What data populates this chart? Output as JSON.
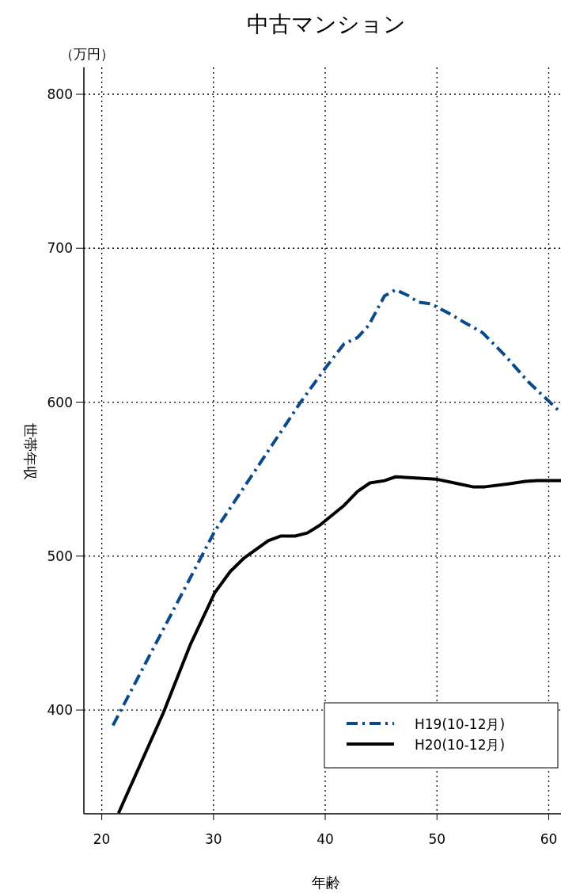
{
  "chart_data": {
    "type": "line",
    "title": "中古マンション",
    "xlabel": "年齢",
    "ylabel": "世帯年収",
    "annotations": [
      "（万円）"
    ],
    "xlim": [
      18.4,
      61.1
    ],
    "ylim": [
      332.6,
      817.5
    ],
    "xticks": [
      20,
      30,
      40,
      50,
      60
    ],
    "yticks": [
      400,
      500,
      600,
      700,
      800
    ],
    "grid": true,
    "legend": "bottom right",
    "marker": "none",
    "series": [
      {
        "name": "H19(10-12月)",
        "color": "#0a4a8c",
        "line_style": "dashdot",
        "x": [
          21.0,
          30.1,
          37.8,
          40.0,
          41.7,
          42.9,
          43.9,
          45.3,
          46.3,
          47.5,
          48.3,
          49.4,
          51.0,
          52.4,
          54.1,
          56.0,
          58.2,
          60.1,
          61.1
        ],
        "values": [
          390,
          516,
          600,
          622,
          638,
          642,
          650,
          669,
          673,
          669,
          665,
          664,
          658,
          652,
          645,
          631,
          613,
          600,
          593
        ]
      },
      {
        "name": "H20(10-12月)",
        "color": "#000000",
        "line_style": "solid",
        "x": [
          21.5,
          25.5,
          27.9,
          30.1,
          31.5,
          32.7,
          34.9,
          36.0,
          37.3,
          38.4,
          39.5,
          41.7,
          42.9,
          44.0,
          45.3,
          46.3,
          47.5,
          49.9,
          51.9,
          53.2,
          54.3,
          56.5,
          57.9,
          59.0,
          61.1
        ],
        "values": [
          333,
          398,
          442,
          476,
          490,
          498.5,
          510,
          513,
          513,
          515,
          520,
          533,
          542,
          547.5,
          549,
          551.5,
          551,
          550,
          547,
          545,
          545,
          547,
          548.5,
          549,
          549
        ]
      }
    ]
  }
}
